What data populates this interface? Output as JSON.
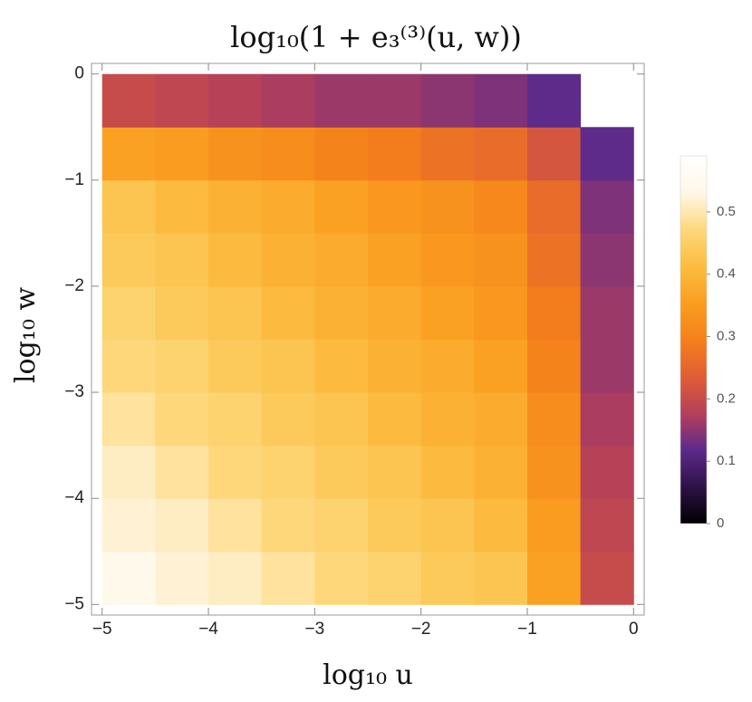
{
  "chart_data": {
    "type": "heatmap",
    "title": "log₁₀(1 + e₃⁽³⁾(u, w))",
    "x_label": "log₁₀ u",
    "y_label": "log₁₀ w",
    "x": [
      -4.75,
      -4.25,
      -3.75,
      -3.25,
      -2.75,
      -2.25,
      -1.75,
      -1.25,
      -0.75,
      -0.25
    ],
    "y": [
      -4.75,
      -4.25,
      -3.75,
      -3.25,
      -2.75,
      -2.25,
      -1.75,
      -1.25,
      -0.75,
      -0.25
    ],
    "values": [
      [
        0.54,
        0.52,
        0.51,
        0.49,
        0.47,
        0.46,
        0.44,
        0.43,
        0.36,
        0.2
      ],
      [
        0.52,
        0.51,
        0.49,
        0.47,
        0.46,
        0.44,
        0.43,
        0.41,
        0.35,
        0.19
      ],
      [
        0.51,
        0.49,
        0.47,
        0.46,
        0.44,
        0.43,
        0.41,
        0.39,
        0.33,
        0.18
      ],
      [
        0.49,
        0.47,
        0.46,
        0.44,
        0.43,
        0.41,
        0.39,
        0.38,
        0.32,
        0.17
      ],
      [
        0.47,
        0.46,
        0.44,
        0.43,
        0.41,
        0.39,
        0.38,
        0.36,
        0.3,
        0.16
      ],
      [
        0.46,
        0.44,
        0.43,
        0.41,
        0.39,
        0.38,
        0.36,
        0.34,
        0.29,
        0.16
      ],
      [
        0.44,
        0.43,
        0.41,
        0.39,
        0.38,
        0.36,
        0.34,
        0.33,
        0.27,
        0.15
      ],
      [
        0.43,
        0.41,
        0.39,
        0.38,
        0.36,
        0.34,
        0.33,
        0.31,
        0.26,
        0.14
      ],
      [
        0.36,
        0.35,
        0.33,
        0.32,
        0.3,
        0.29,
        0.27,
        0.26,
        0.22,
        0.12
      ],
      [
        0.2,
        0.19,
        0.18,
        0.17,
        0.16,
        0.16,
        0.15,
        0.14,
        0.12,
        null
      ]
    ],
    "xlim": [
      -5.1,
      0.1
    ],
    "ylim": [
      -5.1,
      0.1
    ],
    "xticks": [
      {
        "value": -5,
        "label": "−5"
      },
      {
        "value": -4,
        "label": "−4"
      },
      {
        "value": -3,
        "label": "−3"
      },
      {
        "value": -2,
        "label": "−2"
      },
      {
        "value": -1,
        "label": "−1"
      },
      0
    ],
    "yticks": [
      0,
      {
        "value": -1,
        "label": "−1"
      },
      {
        "value": -2,
        "label": "−2"
      },
      {
        "value": -3,
        "label": "−3"
      },
      {
        "value": -4,
        "label": "−4"
      },
      {
        "value": -5,
        "label": "−5"
      }
    ],
    "zlim": [
      0,
      0.59
    ],
    "zticks": [
      0,
      0.1,
      0.2,
      0.3,
      0.4,
      0.5
    ],
    "colors": [
      "#000000",
      "#2e1247",
      "#5c2a8c",
      "#b5405a",
      "#e05e35",
      "#f5801a",
      "#fa9e20",
      "#fcbd40",
      "#fdd87c",
      "#fff8e8",
      "#ffffff"
    ]
  }
}
